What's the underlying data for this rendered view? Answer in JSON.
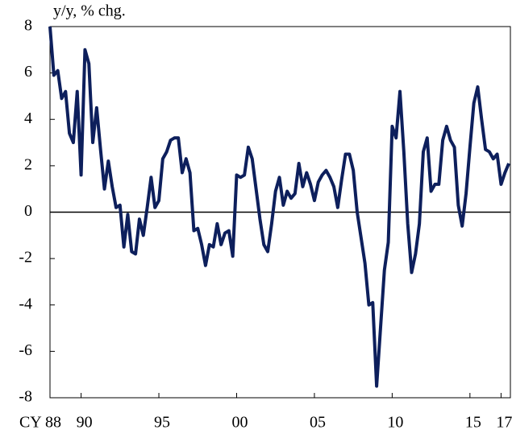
{
  "chart_data": {
    "type": "line",
    "y_axis_label": "y/y, % chg.",
    "x": [
      1988.0,
      1988.25,
      1988.5,
      1988.75,
      1989.0,
      1989.25,
      1989.5,
      1989.75,
      1990.0,
      1990.25,
      1990.5,
      1990.75,
      1991.0,
      1991.25,
      1991.5,
      1991.75,
      1992.0,
      1992.25,
      1992.5,
      1992.75,
      1993.0,
      1993.25,
      1993.5,
      1993.75,
      1994.0,
      1994.25,
      1994.5,
      1994.75,
      1995.0,
      1995.25,
      1995.5,
      1995.75,
      1996.0,
      1996.25,
      1996.5,
      1996.75,
      1997.0,
      1997.25,
      1997.5,
      1997.75,
      1998.0,
      1998.25,
      1998.5,
      1998.75,
      1999.0,
      1999.25,
      1999.5,
      1999.75,
      2000.0,
      2000.25,
      2000.5,
      2000.75,
      2001.0,
      2001.25,
      2001.5,
      2001.75,
      2002.0,
      2002.25,
      2002.5,
      2002.75,
      2003.0,
      2003.25,
      2003.5,
      2003.75,
      2004.0,
      2004.25,
      2004.5,
      2004.75,
      2005.0,
      2005.25,
      2005.5,
      2005.75,
      2006.0,
      2006.25,
      2006.5,
      2006.75,
      2007.0,
      2007.25,
      2007.5,
      2007.75,
      2008.0,
      2008.25,
      2008.5,
      2008.75,
      2009.0,
      2009.25,
      2009.5,
      2009.75,
      2010.0,
      2010.25,
      2010.5,
      2010.75,
      2011.0,
      2011.25,
      2011.5,
      2011.75,
      2012.0,
      2012.25,
      2012.5,
      2012.75,
      2013.0,
      2013.25,
      2013.5,
      2013.75,
      2014.0,
      2014.25,
      2014.5,
      2014.75,
      2015.0,
      2015.25,
      2015.5,
      2015.75,
      2016.0,
      2016.25,
      2016.5,
      2016.75,
      2017.0,
      2017.25,
      2017.5
    ],
    "series": [
      {
        "color": "#0d1f5c",
        "values": [
          8,
          5.9,
          6.1,
          4.9,
          5.2,
          3.4,
          3.0,
          5.2,
          1.6,
          7.0,
          6.4,
          3.0,
          4.5,
          2.7,
          1.0,
          2.2,
          1.1,
          0.2,
          0.3,
          -1.5,
          -0.1,
          -1.7,
          -1.8,
          -0.3,
          -1.0,
          0.2,
          1.5,
          0.2,
          0.5,
          2.3,
          2.6,
          3.1,
          3.2,
          3.2,
          1.7,
          2.3,
          1.7,
          -0.8,
          -0.7,
          -1.4,
          -2.3,
          -1.4,
          -1.5,
          -0.5,
          -1.4,
          -0.9,
          -0.8,
          -1.9,
          1.6,
          1.5,
          1.6,
          2.8,
          2.3,
          1.0,
          -0.3,
          -1.4,
          -1.7,
          -0.5,
          0.9,
          1.5,
          0.3,
          0.9,
          0.6,
          0.8,
          2.1,
          1.1,
          1.7,
          1.2,
          0.5,
          1.3,
          1.6,
          1.8,
          1.5,
          1.1,
          0.2,
          1.4,
          2.5,
          2.5,
          1.8,
          0.0,
          -1.1,
          -2.2,
          -4.0,
          -3.9,
          -7.5,
          -5.0,
          -2.5,
          -1.3,
          3.7,
          3.2,
          5.2,
          2.6,
          -0.5,
          -2.6,
          -1.8,
          -0.5,
          2.6,
          3.2,
          0.9,
          1.2,
          1.2,
          3.1,
          3.7,
          3.1,
          2.8,
          0.3,
          -0.6,
          0.8,
          2.8,
          4.7,
          5.4,
          4.0,
          2.7,
          2.6,
          2.3,
          2.5,
          1.2,
          1.7,
          2.1
        ]
      }
    ],
    "xlim": [
      1988,
      2017.6
    ],
    "xticks": [
      {
        "value": 1988,
        "label": "CY 88"
      },
      {
        "value": 1990,
        "label": "90"
      },
      {
        "value": 1995,
        "label": "95"
      },
      {
        "value": 2000,
        "label": "00"
      },
      {
        "value": 2005,
        "label": "05"
      },
      {
        "value": 2010,
        "label": "10"
      },
      {
        "value": 2015,
        "label": "15"
      },
      {
        "value": 2017,
        "label": "17"
      }
    ],
    "ylim": [
      -8,
      8
    ],
    "yticks": [
      -8,
      -6,
      -4,
      -2,
      0,
      2,
      4,
      6,
      8
    ],
    "zero_line": true
  }
}
